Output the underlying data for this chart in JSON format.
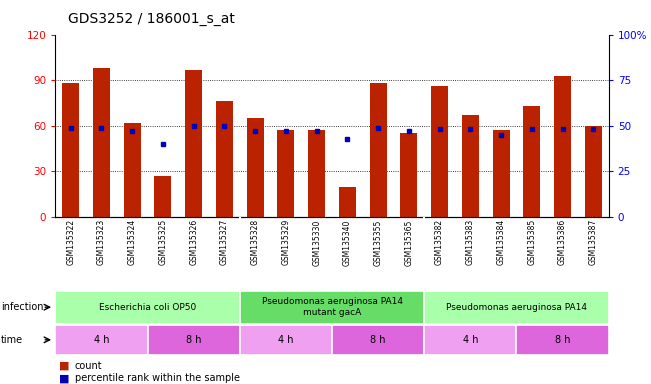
{
  "title": "GDS3252 / 186001_s_at",
  "samples": [
    "GSM135322",
    "GSM135323",
    "GSM135324",
    "GSM135325",
    "GSM135326",
    "GSM135327",
    "GSM135328",
    "GSM135329",
    "GSM135330",
    "GSM135340",
    "GSM135355",
    "GSM135365",
    "GSM135382",
    "GSM135383",
    "GSM135384",
    "GSM135385",
    "GSM135386",
    "GSM135387"
  ],
  "counts": [
    88,
    98,
    62,
    27,
    97,
    76,
    65,
    57,
    57,
    20,
    88,
    55,
    86,
    67,
    57,
    73,
    93,
    60
  ],
  "percentiles": [
    49,
    49,
    47,
    40,
    50,
    50,
    47,
    47,
    47,
    43,
    49,
    47,
    48,
    48,
    45,
    48,
    48,
    48
  ],
  "infection_groups": [
    {
      "label": "Escherichia coli OP50",
      "start": 0,
      "end": 6,
      "color": "#aaffaa"
    },
    {
      "label": "Pseudomonas aeruginosa PA14\nmutant gacA",
      "start": 6,
      "end": 12,
      "color": "#66dd66"
    },
    {
      "label": "Pseudomonas aeruginosa PA14",
      "start": 12,
      "end": 18,
      "color": "#aaffaa"
    }
  ],
  "time_groups": [
    {
      "label": "4 h",
      "start": 0,
      "end": 3,
      "color": "#f0a0f0"
    },
    {
      "label": "8 h",
      "start": 3,
      "end": 6,
      "color": "#dd66dd"
    },
    {
      "label": "4 h",
      "start": 6,
      "end": 9,
      "color": "#f0a0f0"
    },
    {
      "label": "8 h",
      "start": 9,
      "end": 12,
      "color": "#dd66dd"
    },
    {
      "label": "4 h",
      "start": 12,
      "end": 15,
      "color": "#f0a0f0"
    },
    {
      "label": "8 h",
      "start": 15,
      "end": 18,
      "color": "#dd66dd"
    }
  ],
  "bar_color": "#BB2200",
  "dot_color": "#0000BB",
  "left_ylim": [
    0,
    120
  ],
  "right_ylim": [
    0,
    100
  ],
  "left_yticks": [
    0,
    30,
    60,
    90,
    120
  ],
  "right_yticks": [
    0,
    25,
    50,
    75,
    100
  ],
  "right_yticklabels": [
    "0",
    "25",
    "50",
    "75",
    "100%"
  ],
  "grid_lines": [
    30,
    60,
    90
  ],
  "background_color": "#ffffff",
  "legend_count_label": "count",
  "legend_pct_label": "percentile rank within the sample",
  "xlabel_bg": "#cccccc",
  "group_boundaries": [
    6,
    12
  ]
}
